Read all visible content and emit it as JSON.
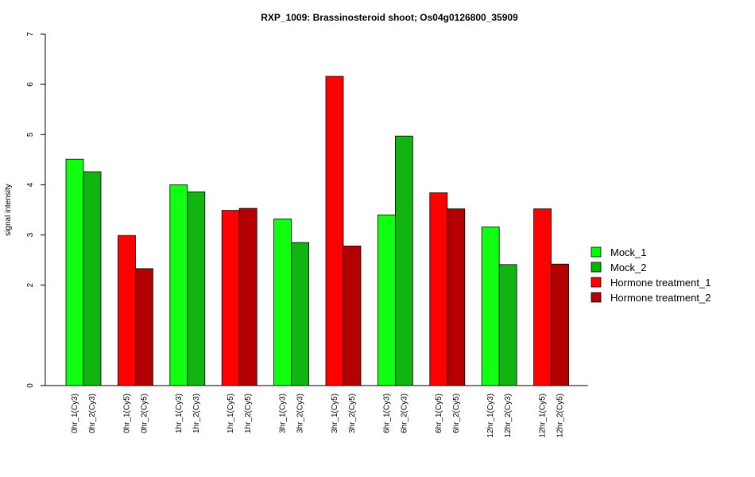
{
  "chart_data": {
    "type": "bar",
    "title": "RXP_1009: Brassinosteroid shoot; Os04g0126800_35909",
    "xlabel": "",
    "ylabel": "signal intensity",
    "ylim": [
      0,
      7
    ],
    "yticks": [
      0,
      2,
      3,
      4,
      5,
      6,
      7
    ],
    "grid": false,
    "legend_position": "right",
    "legend": [
      {
        "name": "Mock_1",
        "color": "#00ff00"
      },
      {
        "name": "Mock_2",
        "color": "#00b400"
      },
      {
        "name": "Hormone treatment_1",
        "color": "#ff0000"
      },
      {
        "name": "Hormone treatment_2",
        "color": "#b40000"
      }
    ],
    "bars": [
      {
        "label": "0hr_1(Cy3)",
        "value": 4.51,
        "color": "#11ff11"
      },
      {
        "label": "0hr_2(Cy3)",
        "value": 4.26,
        "color": "#11b411"
      },
      {
        "label": "0hr_1(Cy5)",
        "value": 2.99,
        "color": "#ff0000"
      },
      {
        "label": "0hr_2(Cy5)",
        "value": 2.33,
        "color": "#b40000"
      },
      {
        "label": "1hr_1(Cy3)",
        "value": 4.0,
        "color": "#11ff11"
      },
      {
        "label": "1hr_2(Cy3)",
        "value": 3.86,
        "color": "#11b411"
      },
      {
        "label": "1hr_1(Cy5)",
        "value": 3.49,
        "color": "#ff0000"
      },
      {
        "label": "1hr_2(Cy5)",
        "value": 3.53,
        "color": "#b40000"
      },
      {
        "label": "3hr_1(Cy3)",
        "value": 3.32,
        "color": "#11ff11"
      },
      {
        "label": "3hr_2(Cy3)",
        "value": 2.85,
        "color": "#11b411"
      },
      {
        "label": "3hr_1(Cy5)",
        "value": 6.16,
        "color": "#ff0000"
      },
      {
        "label": "3hr_2(Cy5)",
        "value": 2.78,
        "color": "#b40000"
      },
      {
        "label": "6hr_1(Cy3)",
        "value": 3.4,
        "color": "#11ff11"
      },
      {
        "label": "6hr_2(Cy3)",
        "value": 4.97,
        "color": "#11b411"
      },
      {
        "label": "6hr_1(Cy5)",
        "value": 3.84,
        "color": "#ff0000"
      },
      {
        "label": "6hr_2(Cy5)",
        "value": 3.52,
        "color": "#b40000"
      },
      {
        "label": "12hr_1(Cy3)",
        "value": 3.16,
        "color": "#11ff11"
      },
      {
        "label": "12hr_2(Cy3)",
        "value": 2.41,
        "color": "#11b411"
      },
      {
        "label": "12hr_1(Cy5)",
        "value": 3.52,
        "color": "#ff0000"
      },
      {
        "label": "12hr_2(Cy5)",
        "value": 2.42,
        "color": "#b40000"
      }
    ]
  }
}
